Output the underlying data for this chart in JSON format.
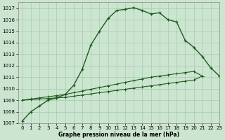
{
  "title": "Graphe pression niveau de la mer (hPa)",
  "background_color": "#cce5d0",
  "grid_color": "#aacfb5",
  "line_color": "#1a5c1a",
  "xlim": [
    -0.5,
    23
  ],
  "ylim": [
    1007,
    1017.5
  ],
  "xticks": [
    0,
    1,
    2,
    3,
    4,
    5,
    6,
    7,
    8,
    9,
    10,
    11,
    12,
    13,
    14,
    15,
    16,
    17,
    18,
    19,
    20,
    21,
    22,
    23
  ],
  "yticks": [
    1007,
    1008,
    1009,
    1010,
    1011,
    1012,
    1013,
    1014,
    1015,
    1016,
    1017
  ],
  "series1_x": [
    0,
    1,
    2,
    3,
    4,
    5,
    6,
    7,
    8,
    9,
    10,
    11,
    12,
    13,
    14,
    15,
    16,
    17,
    18,
    19,
    20,
    21,
    22,
    23
  ],
  "series1_y": [
    1007.2,
    1008.0,
    1008.5,
    1009.0,
    1009.2,
    1009.5,
    1010.3,
    1011.7,
    1013.8,
    1015.0,
    1016.1,
    1016.8,
    1016.9,
    1017.05,
    1016.8,
    1016.5,
    1016.6,
    1016.0,
    1015.8,
    1014.2,
    1013.6,
    1012.8,
    1011.8,
    1011.1
  ],
  "series2_x": [
    0,
    1,
    2,
    3,
    4,
    5,
    6,
    7,
    8,
    9,
    10,
    11,
    12,
    13,
    14,
    15,
    16,
    17,
    18,
    19,
    20,
    21
  ],
  "series2_y": [
    1009.0,
    1009.1,
    1009.2,
    1009.3,
    1009.4,
    1009.5,
    1009.65,
    1009.8,
    1009.95,
    1010.1,
    1010.25,
    1010.4,
    1010.55,
    1010.7,
    1010.85,
    1011.0,
    1011.1,
    1011.2,
    1011.3,
    1011.4,
    1011.5,
    1011.1
  ],
  "series3_x": [
    0,
    1,
    2,
    3,
    4,
    5,
    6,
    7,
    8,
    9,
    10,
    11,
    12,
    13,
    14,
    15,
    16,
    17,
    18,
    19,
    20,
    21
  ],
  "series3_y": [
    1009.0,
    1009.05,
    1009.1,
    1009.15,
    1009.2,
    1009.25,
    1009.35,
    1009.45,
    1009.55,
    1009.65,
    1009.75,
    1009.85,
    1009.95,
    1010.05,
    1010.15,
    1010.25,
    1010.35,
    1010.45,
    1010.55,
    1010.65,
    1010.75,
    1011.1
  ],
  "xlabel_fontsize": 5.5,
  "tick_fontsize": 5,
  "linewidth1": 1.0,
  "linewidth2": 0.8,
  "markersize1": 3.5,
  "markersize2": 2.5
}
